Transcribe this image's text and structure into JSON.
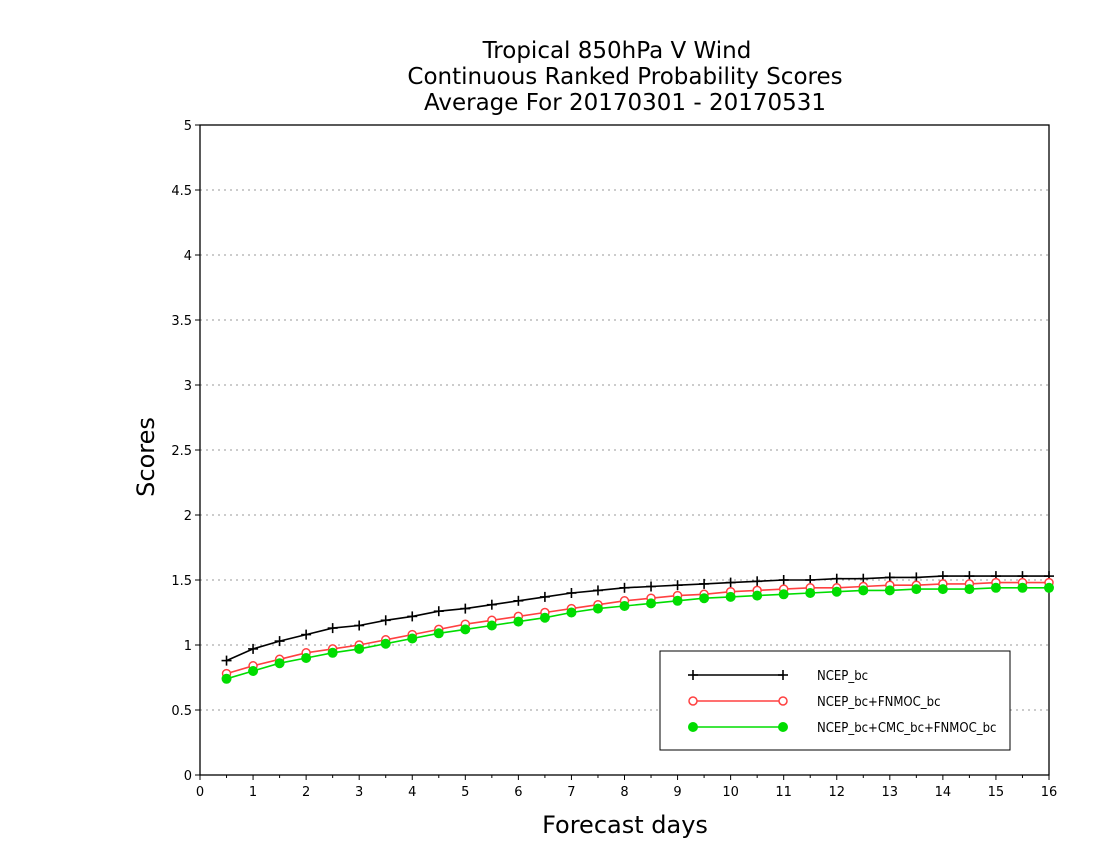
{
  "chart_data": {
    "type": "line",
    "title": [
      "Tropical 850hPa V Wind",
      "Continuous Ranked Probability Scores",
      "Average For 20170301 - 20170531"
    ],
    "xlabel": "Forecast days",
    "ylabel": "Scores",
    "xlim": [
      0,
      16
    ],
    "ylim": [
      0,
      5
    ],
    "xticks": [
      "0",
      "1",
      "2",
      "3",
      "4",
      "5",
      "6",
      "7",
      "8",
      "9",
      "10",
      "11",
      "12",
      "13",
      "14",
      "15",
      "16"
    ],
    "yticks": [
      "0",
      "0.5",
      "1",
      "1.5",
      "2",
      "2.5",
      "3",
      "3.5",
      "4",
      "4.5",
      "5"
    ],
    "grid": true,
    "legend_position": "bottom-right",
    "x": [
      0.5,
      1,
      1.5,
      2,
      2.5,
      3,
      3.5,
      4,
      4.5,
      5,
      5.5,
      6,
      6.5,
      7,
      7.5,
      8,
      8.5,
      9,
      9.5,
      10,
      10.5,
      11,
      11.5,
      12,
      12.5,
      13,
      13.5,
      14,
      14.5,
      15,
      15.5,
      16
    ],
    "series": [
      {
        "name": "NCEP_bc",
        "color": "#000000",
        "marker": "plus",
        "values": [
          0.88,
          0.97,
          1.03,
          1.08,
          1.13,
          1.15,
          1.19,
          1.22,
          1.26,
          1.28,
          1.31,
          1.34,
          1.37,
          1.4,
          1.42,
          1.44,
          1.45,
          1.46,
          1.47,
          1.48,
          1.49,
          1.5,
          1.5,
          1.51,
          1.51,
          1.52,
          1.52,
          1.53,
          1.53,
          1.53,
          1.53,
          1.53
        ]
      },
      {
        "name": "NCEP_bc+FNMOC_bc",
        "color": "#ff4040",
        "marker": "open-circle",
        "values": [
          0.78,
          0.84,
          0.89,
          0.94,
          0.97,
          1.0,
          1.04,
          1.08,
          1.12,
          1.16,
          1.19,
          1.22,
          1.25,
          1.28,
          1.31,
          1.34,
          1.36,
          1.38,
          1.39,
          1.41,
          1.42,
          1.43,
          1.44,
          1.44,
          1.45,
          1.46,
          1.46,
          1.47,
          1.47,
          1.48,
          1.48,
          1.48
        ]
      },
      {
        "name": "NCEP_bc+CMC_bc+FNMOC_bc",
        "color": "#00dd00",
        "marker": "filled-circle",
        "values": [
          0.74,
          0.8,
          0.86,
          0.9,
          0.94,
          0.97,
          1.01,
          1.05,
          1.09,
          1.12,
          1.15,
          1.18,
          1.21,
          1.25,
          1.28,
          1.3,
          1.32,
          1.34,
          1.36,
          1.37,
          1.38,
          1.39,
          1.4,
          1.41,
          1.42,
          1.42,
          1.43,
          1.43,
          1.43,
          1.44,
          1.44,
          1.44
        ]
      }
    ]
  }
}
